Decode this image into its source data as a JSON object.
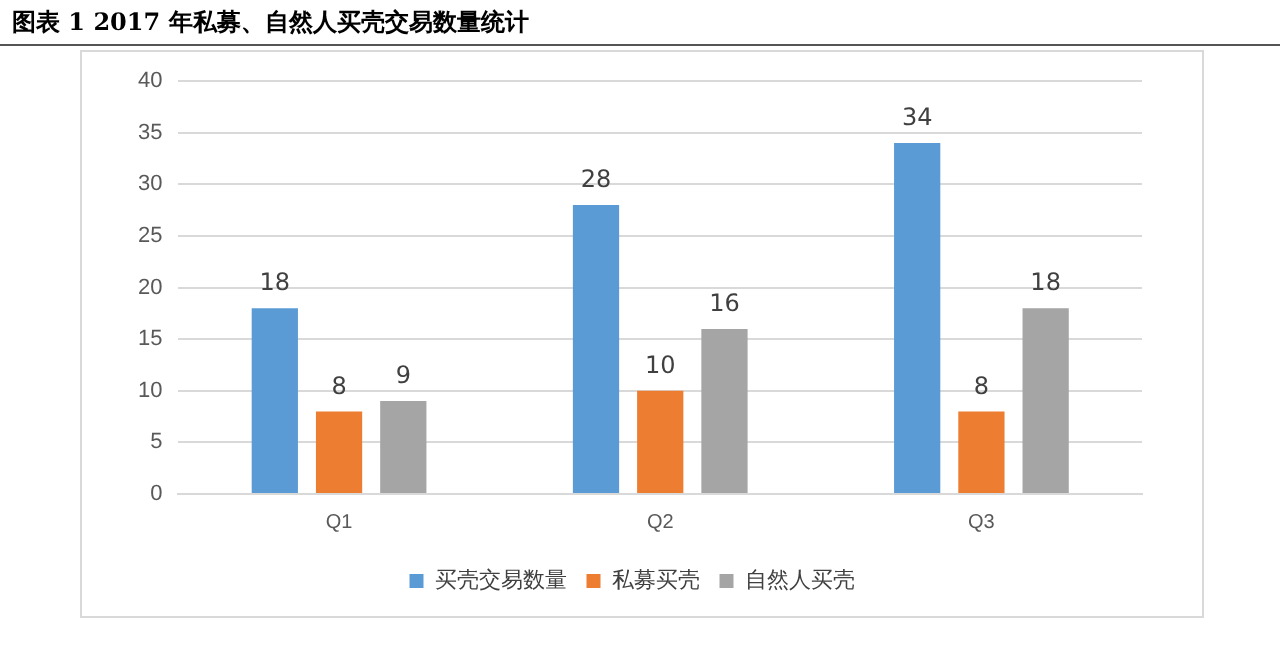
{
  "chart_data": {
    "type": "bar",
    "title": "图表 1   2017 年私募、自然人买壳交易数量统计",
    "categories": [
      "Q1",
      "Q2",
      "Q3"
    ],
    "series": [
      {
        "name": "买壳交易数量",
        "color": "#5b9bd5",
        "values": [
          18,
          28,
          34
        ]
      },
      {
        "name": "私募买壳",
        "color": "#ed7d31",
        "values": [
          8,
          10,
          8
        ]
      },
      {
        "name": "自然人买壳",
        "color": "#a5a5a5",
        "values": [
          9,
          16,
          18
        ]
      }
    ],
    "ylim": [
      0,
      40
    ],
    "yticks": [
      0,
      5,
      10,
      15,
      20,
      25,
      30,
      35,
      40
    ],
    "grid": "y",
    "legend": "bottom",
    "data_labels": true
  }
}
